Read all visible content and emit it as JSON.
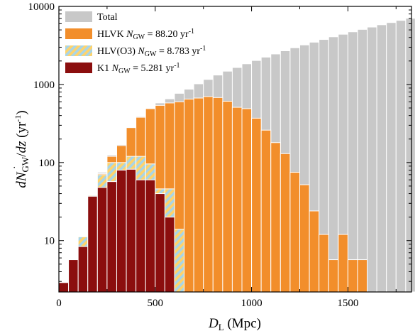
{
  "chart_data": {
    "type": "bar",
    "xlabel": "D_L (Mpc)",
    "ylabel": "dN_GW/dz (yr^-1)",
    "x_ticks": [
      "0",
      "500",
      "1000",
      "1500"
    ],
    "y_ticks": [
      "10",
      "100",
      "1000",
      "10000"
    ],
    "xlim": [
      0,
      1830
    ],
    "ylim": [
      2.2,
      10000
    ],
    "yscale": "log",
    "bin_width": 50,
    "bin_centers": [
      25,
      75,
      125,
      175,
      225,
      275,
      325,
      375,
      425,
      475,
      525,
      575,
      625,
      675,
      725,
      775,
      825,
      875,
      925,
      975,
      1025,
      1075,
      1125,
      1175,
      1225,
      1275,
      1325,
      1375,
      1425,
      1475,
      1525,
      1575,
      1625,
      1675,
      1725,
      1775,
      1825
    ],
    "legend_position": "upper-left",
    "series": [
      {
        "name": "Total",
        "color": "#c8c8c8",
        "values": [
          2.9,
          5.7,
          11.2,
          38,
          75,
          125,
          170,
          285,
          390,
          490,
          580,
          655,
          770,
          870,
          1020,
          1160,
          1320,
          1480,
          1650,
          1840,
          2030,
          2240,
          2460,
          2700,
          2950,
          3210,
          3480,
          3770,
          4080,
          4400,
          4730,
          5080,
          5440,
          5820,
          6210,
          6620,
          7040
        ]
      },
      {
        "name": "HLVK",
        "color": "#f28e2b",
        "legend": [
          "HLVK ",
          "N",
          "GW",
          " = 88.20 yr",
          "-1"
        ],
        "values": [
          2.9,
          5.7,
          11.2,
          38,
          72,
          120,
          165,
          280,
          380,
          490,
          540,
          580,
          600,
          650,
          670,
          700,
          680,
          610,
          510,
          490,
          370,
          260,
          180,
          130,
          75,
          52,
          24,
          12,
          5.7,
          12,
          5.7,
          5.7,
          null,
          null,
          null,
          null,
          null
        ]
      },
      {
        "name": "HLV(O3)",
        "color": "#a9d5e6",
        "hatch": "#ffd36b",
        "legend": [
          "HLV(O3) ",
          "N",
          "GW",
          " = 8.783 yr",
          "-1"
        ],
        "values": [
          2.9,
          5.7,
          11.2,
          38,
          70,
          100,
          100,
          120,
          120,
          96,
          46,
          46,
          14,
          null,
          null,
          null,
          null,
          null,
          null,
          null,
          null,
          null,
          null,
          null,
          null,
          null,
          null,
          null,
          null,
          null,
          null,
          null,
          null,
          null,
          null,
          null,
          null
        ]
      },
      {
        "name": "K1",
        "color": "#8b0e0e",
        "legend": [
          "K1 ",
          "N",
          "GW",
          " = 5.281 yr",
          "-1"
        ],
        "values": [
          2.9,
          5.7,
          8.4,
          37,
          48,
          57,
          80,
          82,
          60,
          60,
          40,
          20,
          null,
          null,
          null,
          null,
          null,
          null,
          null,
          null,
          null,
          null,
          null,
          null,
          null,
          null,
          null,
          null,
          null,
          null,
          null,
          null,
          null,
          null,
          null,
          null,
          null
        ]
      }
    ]
  }
}
